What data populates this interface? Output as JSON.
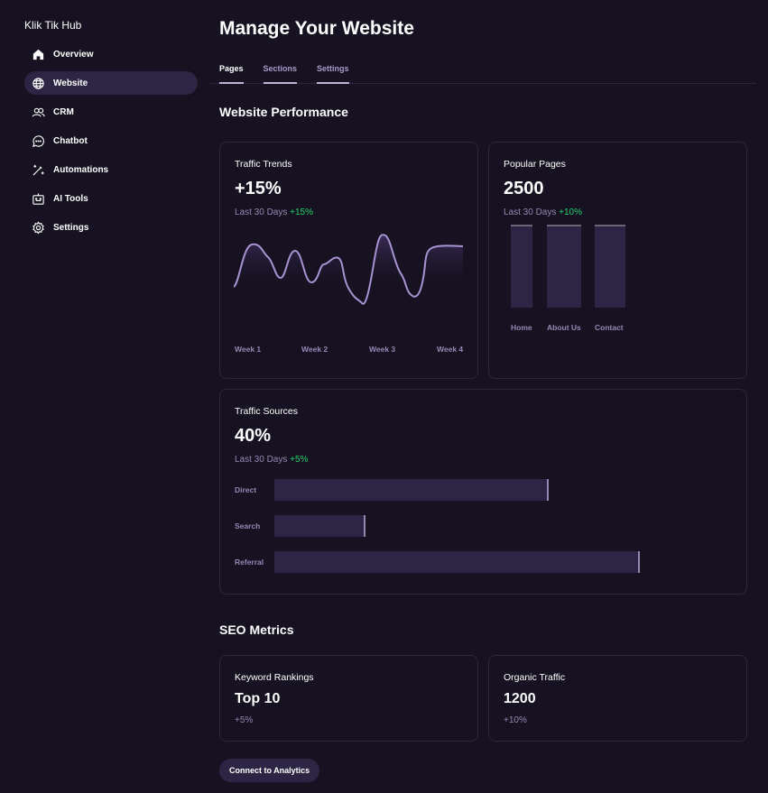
{
  "brand": "Klik Tik Hub",
  "nav": [
    {
      "label": "Overview",
      "icon": "home-icon"
    },
    {
      "label": "Website",
      "icon": "globe-icon"
    },
    {
      "label": "CRM",
      "icon": "users-icon"
    },
    {
      "label": "Chatbot",
      "icon": "chat-icon"
    },
    {
      "label": "Automations",
      "icon": "magic-wand-icon"
    },
    {
      "label": "AI Tools",
      "icon": "robot-icon"
    },
    {
      "label": "Settings",
      "icon": "gear-icon"
    }
  ],
  "title": "Manage Your Website",
  "tabs": [
    "Pages",
    "Sections",
    "Settings"
  ],
  "performance": {
    "heading": "Website Performance",
    "traffic_trends": {
      "title": "Traffic Trends",
      "value": "+15%",
      "period": "Last 30 Days",
      "change": "+15%",
      "weeks": [
        "Week 1",
        "Week 2",
        "Week 3",
        "Week 4"
      ]
    },
    "popular_pages": {
      "title": "Popular Pages",
      "value": "2500",
      "period": "Last 30 Days",
      "change": "+10%",
      "pages": [
        {
          "label": "Home",
          "value": 100
        },
        {
          "label": "About Us",
          "value": 100
        },
        {
          "label": "Contact",
          "value": 100
        }
      ]
    },
    "traffic_sources": {
      "title": "Traffic Sources",
      "value": "40%",
      "period": "Last 30 Days",
      "change": "+5%",
      "sources": [
        {
          "label": "Direct",
          "value": 75
        },
        {
          "label": "Search",
          "value": 25
        },
        {
          "label": "Referral",
          "value": 100
        }
      ]
    }
  },
  "seo": {
    "heading": "SEO Metrics",
    "keyword": {
      "title": "Keyword Rankings",
      "value": "Top 10",
      "change": "+5%"
    },
    "organic": {
      "title": "Organic Traffic",
      "value": "1200",
      "change": "+10%"
    }
  },
  "button": "Connect to Analytics",
  "colors": {
    "background": "#161221",
    "accent": "#2d2544",
    "positive": "#1fd06a",
    "line": "#a793d1"
  }
}
